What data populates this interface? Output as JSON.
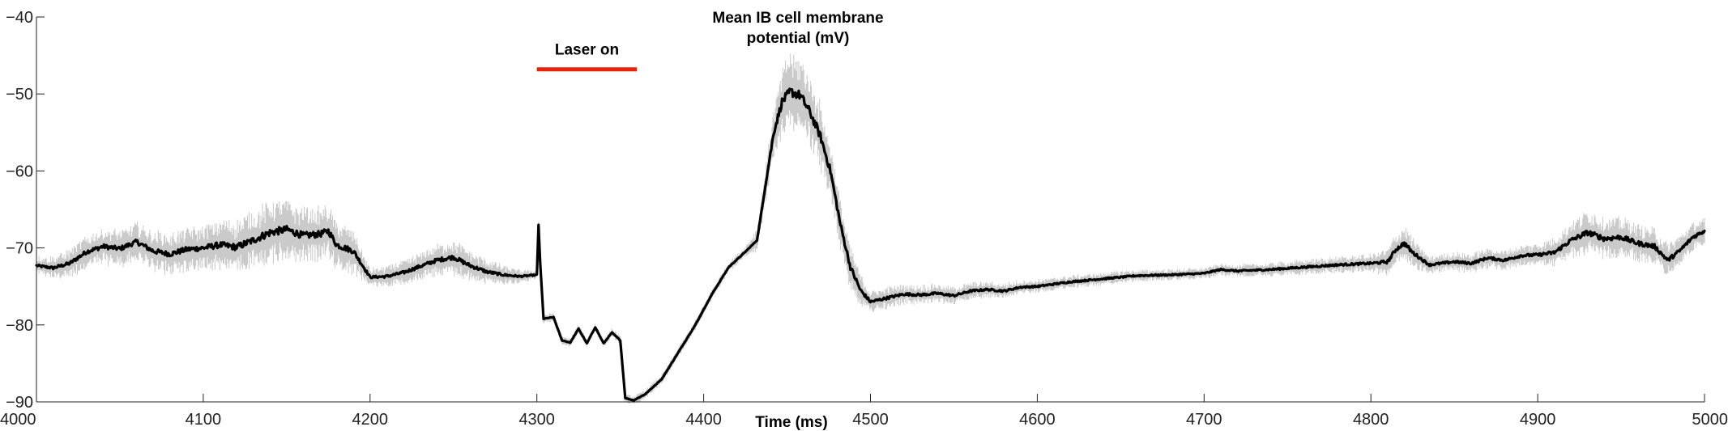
{
  "chart_data": {
    "type": "line",
    "title_lines": [
      "Mean IB cell membrane",
      "potential (mV)"
    ],
    "xlabel": "Time (ms)",
    "ylabel": "",
    "xlim": [
      4000,
      5000
    ],
    "ylim": [
      -90,
      -40
    ],
    "xticks": [
      4000,
      4100,
      4200,
      4300,
      4400,
      4500,
      4600,
      4700,
      4800,
      4900,
      5000
    ],
    "yticks": [
      -40,
      -50,
      -60,
      -70,
      -80,
      -90
    ],
    "grid": false,
    "annotation": {
      "text": "Laser on",
      "x_start": 4300,
      "x_end": 4360,
      "y": -46.8,
      "color": "#e8220a"
    },
    "series": [
      {
        "color": "#000000",
        "band_color": "#c8c8c8",
        "points": [
          [
            4000,
            -72.3
          ],
          [
            4010,
            -72.6
          ],
          [
            4020,
            -72.0
          ],
          [
            4030,
            -70.5
          ],
          [
            4040,
            -69.8
          ],
          [
            4050,
            -70.1
          ],
          [
            4060,
            -69.2
          ],
          [
            4070,
            -70.4
          ],
          [
            4080,
            -70.8
          ],
          [
            4090,
            -70.2
          ],
          [
            4100,
            -70.0
          ],
          [
            4110,
            -69.6
          ],
          [
            4120,
            -69.9
          ],
          [
            4130,
            -69.0
          ],
          [
            4140,
            -68.0
          ],
          [
            4150,
            -67.6
          ],
          [
            4160,
            -68.4
          ],
          [
            4170,
            -68.2
          ],
          [
            4175,
            -67.8
          ],
          [
            4180,
            -69.6
          ],
          [
            4190,
            -70.4
          ],
          [
            4200,
            -73.8
          ],
          [
            4210,
            -73.7
          ],
          [
            4220,
            -73.2
          ],
          [
            4230,
            -72.4
          ],
          [
            4240,
            -71.6
          ],
          [
            4250,
            -71.2
          ],
          [
            4260,
            -72.3
          ],
          [
            4270,
            -73.1
          ],
          [
            4280,
            -73.5
          ],
          [
            4290,
            -73.7
          ],
          [
            4300,
            -73.5
          ],
          [
            4301,
            -67.0
          ],
          [
            4302,
            -72.0
          ],
          [
            4304,
            -79.2
          ],
          [
            4310,
            -79.0
          ],
          [
            4315,
            -82.0
          ],
          [
            4320,
            -82.3
          ],
          [
            4325,
            -80.5
          ],
          [
            4330,
            -82.4
          ],
          [
            4335,
            -80.3
          ],
          [
            4340,
            -82.4
          ],
          [
            4345,
            -81.0
          ],
          [
            4350,
            -82.0
          ],
          [
            4353,
            -89.5
          ],
          [
            4358,
            -89.8
          ],
          [
            4365,
            -89.0
          ],
          [
            4375,
            -87.0
          ],
          [
            4385,
            -83.5
          ],
          [
            4395,
            -80.0
          ],
          [
            4405,
            -76.0
          ],
          [
            4415,
            -72.5
          ],
          [
            4425,
            -70.5
          ],
          [
            4432,
            -69.0
          ],
          [
            4437,
            -62.0
          ],
          [
            4442,
            -55.0
          ],
          [
            4447,
            -51.0
          ],
          [
            4452,
            -49.7
          ],
          [
            4458,
            -50.2
          ],
          [
            4464,
            -52.5
          ],
          [
            4470,
            -55.5
          ],
          [
            4476,
            -60.0
          ],
          [
            4482,
            -67.0
          ],
          [
            4488,
            -72.5
          ],
          [
            4494,
            -75.5
          ],
          [
            4500,
            -77.0
          ],
          [
            4510,
            -76.5
          ],
          [
            4520,
            -76.0
          ],
          [
            4530,
            -76.1
          ],
          [
            4540,
            -75.9
          ],
          [
            4550,
            -76.2
          ],
          [
            4560,
            -75.6
          ],
          [
            4570,
            -75.4
          ],
          [
            4580,
            -75.6
          ],
          [
            4590,
            -75.1
          ],
          [
            4600,
            -75.0
          ],
          [
            4620,
            -74.4
          ],
          [
            4640,
            -74.0
          ],
          [
            4660,
            -73.6
          ],
          [
            4680,
            -73.5
          ],
          [
            4700,
            -73.3
          ],
          [
            4710,
            -72.8
          ],
          [
            4720,
            -73.0
          ],
          [
            4740,
            -72.8
          ],
          [
            4760,
            -72.5
          ],
          [
            4780,
            -72.2
          ],
          [
            4800,
            -72.0
          ],
          [
            4810,
            -71.8
          ],
          [
            4815,
            -70.2
          ],
          [
            4820,
            -69.4
          ],
          [
            4825,
            -70.6
          ],
          [
            4835,
            -72.2
          ],
          [
            4850,
            -71.8
          ],
          [
            4860,
            -72.0
          ],
          [
            4870,
            -71.3
          ],
          [
            4880,
            -71.6
          ],
          [
            4890,
            -71.0
          ],
          [
            4900,
            -70.9
          ],
          [
            4910,
            -70.6
          ],
          [
            4920,
            -69.0
          ],
          [
            4930,
            -68.0
          ],
          [
            4940,
            -68.8
          ],
          [
            4950,
            -68.6
          ],
          [
            4960,
            -69.4
          ],
          [
            4970,
            -69.8
          ],
          [
            4978,
            -71.6
          ],
          [
            4985,
            -70.4
          ],
          [
            4993,
            -68.6
          ],
          [
            5000,
            -67.8
          ]
        ],
        "band_halfwidth": [
          [
            4000,
            0.8
          ],
          [
            4030,
            1.5
          ],
          [
            4100,
            2.0
          ],
          [
            4140,
            2.8
          ],
          [
            4190,
            2.0
          ],
          [
            4200,
            0.8
          ],
          [
            4230,
            1.2
          ],
          [
            4250,
            1.6
          ],
          [
            4290,
            0.6
          ],
          [
            4300,
            0.4
          ],
          [
            4360,
            0.4
          ],
          [
            4425,
            0.5
          ],
          [
            4440,
            2.0
          ],
          [
            4452,
            3.5
          ],
          [
            4470,
            3.0
          ],
          [
            4490,
            1.8
          ],
          [
            4500,
            1.0
          ],
          [
            4600,
            0.6
          ],
          [
            4700,
            0.5
          ],
          [
            4800,
            0.8
          ],
          [
            4820,
            1.6
          ],
          [
            4835,
            0.8
          ],
          [
            4900,
            1.0
          ],
          [
            4930,
            2.0
          ],
          [
            4980,
            1.5
          ],
          [
            5000,
            1.2
          ]
        ]
      }
    ]
  }
}
